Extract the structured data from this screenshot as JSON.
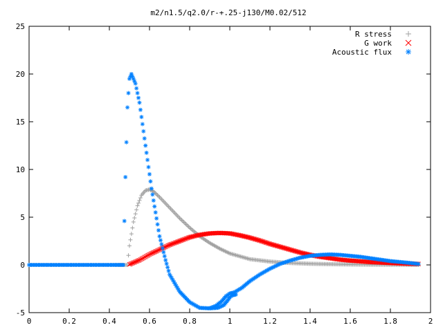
{
  "chart_data": {
    "type": "scatter",
    "title": "m2/n1.5/q2.0/r-+.25-j130/M0.02/512",
    "xlabel": "",
    "ylabel": "",
    "xlim": [
      0,
      2
    ],
    "ylim": [
      -5,
      25
    ],
    "xticks": [
      "0",
      "0.2",
      "0.4",
      "0.6",
      "0.8",
      "1",
      "1.2",
      "1.4",
      "1.6",
      "1.8",
      "2"
    ],
    "yticks": [
      "-5",
      "0",
      "5",
      "10",
      "15",
      "20",
      "25"
    ],
    "grid": false,
    "legend_position": "top-right",
    "series": [
      {
        "name": "R stress",
        "marker": "plus",
        "color": "#a0a0a0",
        "points": [
          [
            0.0,
            0
          ],
          [
            0.1,
            0
          ],
          [
            0.2,
            0
          ],
          [
            0.3,
            0
          ],
          [
            0.4,
            0
          ],
          [
            0.49,
            0
          ],
          [
            0.5,
            2.0
          ],
          [
            0.52,
            4.5
          ],
          [
            0.54,
            6.2
          ],
          [
            0.56,
            7.3
          ],
          [
            0.58,
            7.8
          ],
          [
            0.6,
            7.9
          ],
          [
            0.62,
            7.7
          ],
          [
            0.65,
            7.1
          ],
          [
            0.7,
            6.0
          ],
          [
            0.75,
            4.9
          ],
          [
            0.8,
            3.9
          ],
          [
            0.85,
            3.0
          ],
          [
            0.9,
            2.3
          ],
          [
            0.95,
            1.7
          ],
          [
            1.0,
            1.2
          ],
          [
            1.1,
            0.6
          ],
          [
            1.2,
            0.35
          ],
          [
            1.3,
            0.2
          ],
          [
            1.4,
            0.12
          ],
          [
            1.5,
            0.08
          ],
          [
            1.6,
            0.05
          ],
          [
            1.7,
            0.03
          ],
          [
            1.8,
            0.02
          ],
          [
            1.94,
            0.01
          ]
        ]
      },
      {
        "name": "G work",
        "marker": "cross",
        "color": "#ff0000",
        "points": [
          [
            0.5,
            0.05
          ],
          [
            0.55,
            0.5
          ],
          [
            0.6,
            1.1
          ],
          [
            0.65,
            1.6
          ],
          [
            0.7,
            2.1
          ],
          [
            0.75,
            2.5
          ],
          [
            0.8,
            2.9
          ],
          [
            0.85,
            3.15
          ],
          [
            0.9,
            3.3
          ],
          [
            0.95,
            3.35
          ],
          [
            1.0,
            3.3
          ],
          [
            1.05,
            3.1
          ],
          [
            1.1,
            2.85
          ],
          [
            1.15,
            2.55
          ],
          [
            1.2,
            2.2
          ],
          [
            1.25,
            1.9
          ],
          [
            1.3,
            1.6
          ],
          [
            1.35,
            1.3
          ],
          [
            1.4,
            1.05
          ],
          [
            1.45,
            0.85
          ],
          [
            1.5,
            0.7
          ],
          [
            1.55,
            0.55
          ],
          [
            1.6,
            0.45
          ],
          [
            1.65,
            0.37
          ],
          [
            1.7,
            0.3
          ],
          [
            1.75,
            0.25
          ],
          [
            1.8,
            0.2
          ],
          [
            1.85,
            0.15
          ],
          [
            1.9,
            0.12
          ],
          [
            1.94,
            0.1
          ]
        ]
      },
      {
        "name": "Acoustic flux",
        "marker": "star",
        "color": "#0080ff",
        "points": [
          [
            0.0,
            0
          ],
          [
            0.1,
            0
          ],
          [
            0.2,
            0
          ],
          [
            0.3,
            0
          ],
          [
            0.4,
            0
          ],
          [
            0.47,
            0
          ],
          [
            0.48,
            9.2
          ],
          [
            0.49,
            16.5
          ],
          [
            0.5,
            19.5
          ],
          [
            0.51,
            20.0
          ],
          [
            0.53,
            19.0
          ],
          [
            0.55,
            17.0
          ],
          [
            0.57,
            14.0
          ],
          [
            0.59,
            11.0
          ],
          [
            0.61,
            8.0
          ],
          [
            0.63,
            5.5
          ],
          [
            0.65,
            3.0
          ],
          [
            0.68,
            0.5
          ],
          [
            0.7,
            -1.0
          ],
          [
            0.75,
            -2.8
          ],
          [
            0.8,
            -3.9
          ],
          [
            0.85,
            -4.5
          ],
          [
            0.9,
            -4.55
          ],
          [
            0.93,
            -4.3
          ],
          [
            0.96,
            -3.8
          ],
          [
            0.98,
            -3.3
          ],
          [
            1.0,
            -3.0
          ],
          [
            1.02,
            -2.9
          ],
          [
            1.06,
            -2.4
          ],
          [
            1.1,
            -1.7
          ],
          [
            1.15,
            -1.0
          ],
          [
            1.2,
            -0.4
          ],
          [
            1.25,
            0.1
          ],
          [
            1.3,
            0.45
          ],
          [
            1.35,
            0.75
          ],
          [
            1.4,
            0.95
          ],
          [
            1.45,
            1.05
          ],
          [
            1.5,
            1.1
          ],
          [
            1.55,
            1.05
          ],
          [
            1.6,
            0.95
          ],
          [
            1.65,
            0.85
          ],
          [
            1.7,
            0.7
          ],
          [
            1.75,
            0.55
          ],
          [
            1.8,
            0.4
          ],
          [
            1.85,
            0.3
          ],
          [
            1.9,
            0.2
          ],
          [
            1.94,
            0.1
          ]
        ]
      },
      {
        "name": "Acoustic flux",
        "marker": "star",
        "color": "#0080ff",
        "legend": false,
        "points": [
          [
            0.9,
            -4.55
          ],
          [
            0.94,
            -4.5
          ],
          [
            0.97,
            -4.2
          ],
          [
            0.99,
            -3.7
          ],
          [
            1.0,
            -3.4
          ],
          [
            1.01,
            -3.2
          ],
          [
            1.03,
            -3.1
          ]
        ]
      }
    ]
  }
}
